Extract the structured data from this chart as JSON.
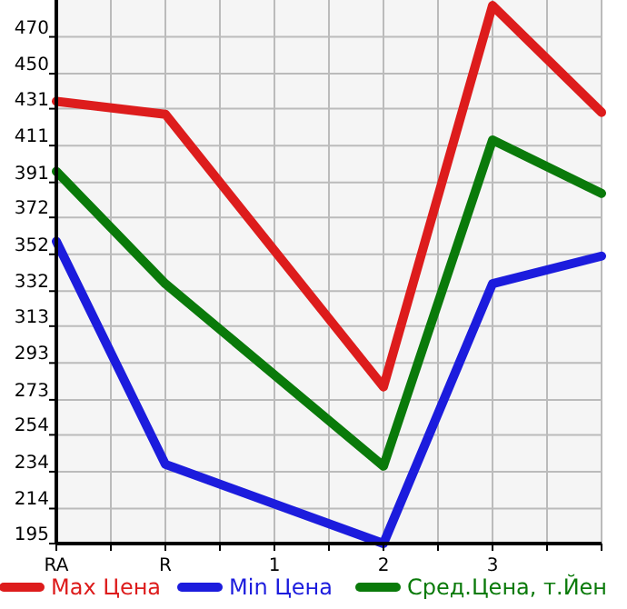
{
  "chart_data": {
    "type": "line",
    "categories": [
      "RA",
      "R",
      "1",
      "2",
      "3",
      null
    ],
    "series": [
      {
        "name": "Max Цена",
        "color": "#dd1c1c",
        "values": [
          435,
          428,
          null,
          280,
          487,
          429
        ]
      },
      {
        "name": "Min Цена",
        "color": "#1c1cdd",
        "values": [
          359,
          238,
          null,
          195,
          336,
          351
        ]
      },
      {
        "name": "Сред.Цена, т.Йен",
        "color": "#0a7a0a",
        "values": [
          397,
          336,
          null,
          237,
          414,
          385
        ]
      }
    ],
    "ylim": [
      195,
      490
    ],
    "yticks": [
      195,
      214,
      234,
      254,
      273,
      293,
      313,
      332,
      352,
      372,
      391,
      411,
      431,
      450,
      470
    ],
    "grid": true,
    "legend": "bottom",
    "marker": "none",
    "line_style": "solid"
  }
}
